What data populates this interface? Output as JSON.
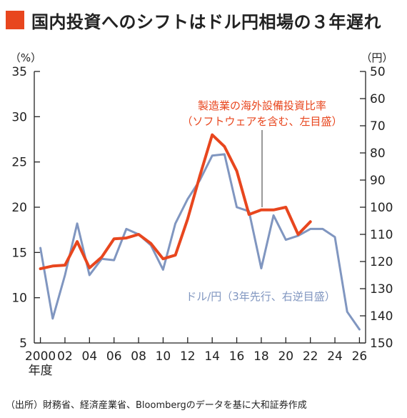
{
  "title": "国内投資へのシフトはドル円相場の３年遅れ",
  "source_note": "（出所）財務省、経済産業省、Bloombergのデータを基に大和証券作成",
  "colors": {
    "accent": "#e8461e",
    "line_capex": "#e8461e",
    "line_usdjpy": "#8096c0",
    "axis": "#222222",
    "title_square": "#e8461e"
  },
  "chart_data": {
    "type": "line",
    "title": "国内投資へのシフトはドル円相場の３年遅れ",
    "x_tick_labels": [
      "2000",
      "02",
      "04",
      "06",
      "08",
      "10",
      "12",
      "14",
      "16",
      "18",
      "20",
      "22",
      "24",
      "26"
    ],
    "x_tick_values": [
      2000,
      2002,
      2004,
      2006,
      2008,
      2010,
      2012,
      2014,
      2016,
      2018,
      2020,
      2022,
      2024,
      2026
    ],
    "xlabel": "年度",
    "xlim": [
      1999.5,
      2026.5
    ],
    "y_left": {
      "unit": "（%）",
      "ylim": [
        5,
        35
      ],
      "ticks": [
        5,
        10,
        15,
        20,
        25,
        30,
        35
      ]
    },
    "y_right": {
      "unit": "（円）",
      "ylim": [
        50,
        150
      ],
      "ticks": [
        50,
        60,
        70,
        80,
        90,
        100,
        110,
        120,
        130,
        140,
        150
      ],
      "inverted": true
    },
    "grid": false,
    "series": [
      {
        "name": "製造業の海外設備投資比率",
        "name_line2": "（ソフトウェアを含む、左目盛）",
        "axis": "left",
        "x": [
          2000,
          2001,
          2002,
          2003,
          2004,
          2005,
          2006,
          2007,
          2008,
          2009,
          2010,
          2011,
          2012,
          2013,
          2014,
          2015,
          2016,
          2017,
          2018,
          2019,
          2020,
          2021,
          2022
        ],
        "values": [
          13.2,
          13.5,
          13.6,
          16.2,
          13.3,
          14.5,
          16.5,
          16.6,
          17.0,
          16.0,
          14.3,
          14.7,
          18.7,
          23.5,
          28.0,
          26.7,
          24.0,
          19.2,
          19.7,
          19.7,
          20.0,
          17.0,
          18.4
        ]
      },
      {
        "name": "ドル/円（3年先行、右逆目盛）",
        "axis": "right",
        "x": [
          2000,
          2001,
          2002,
          2003,
          2004,
          2005,
          2006,
          2007,
          2008,
          2009,
          2010,
          2011,
          2012,
          2013,
          2014,
          2015,
          2016,
          2017,
          2018,
          2019,
          2020,
          2021,
          2022,
          2023,
          2024,
          2025,
          2026
        ],
        "values": [
          115,
          141,
          125,
          106,
          125,
          119,
          119.5,
          108,
          110,
          114,
          123,
          106,
          97,
          90,
          81,
          80.5,
          100,
          101.5,
          122.5,
          103,
          112,
          110.5,
          108,
          108,
          111,
          138.5,
          145
        ]
      }
    ]
  }
}
